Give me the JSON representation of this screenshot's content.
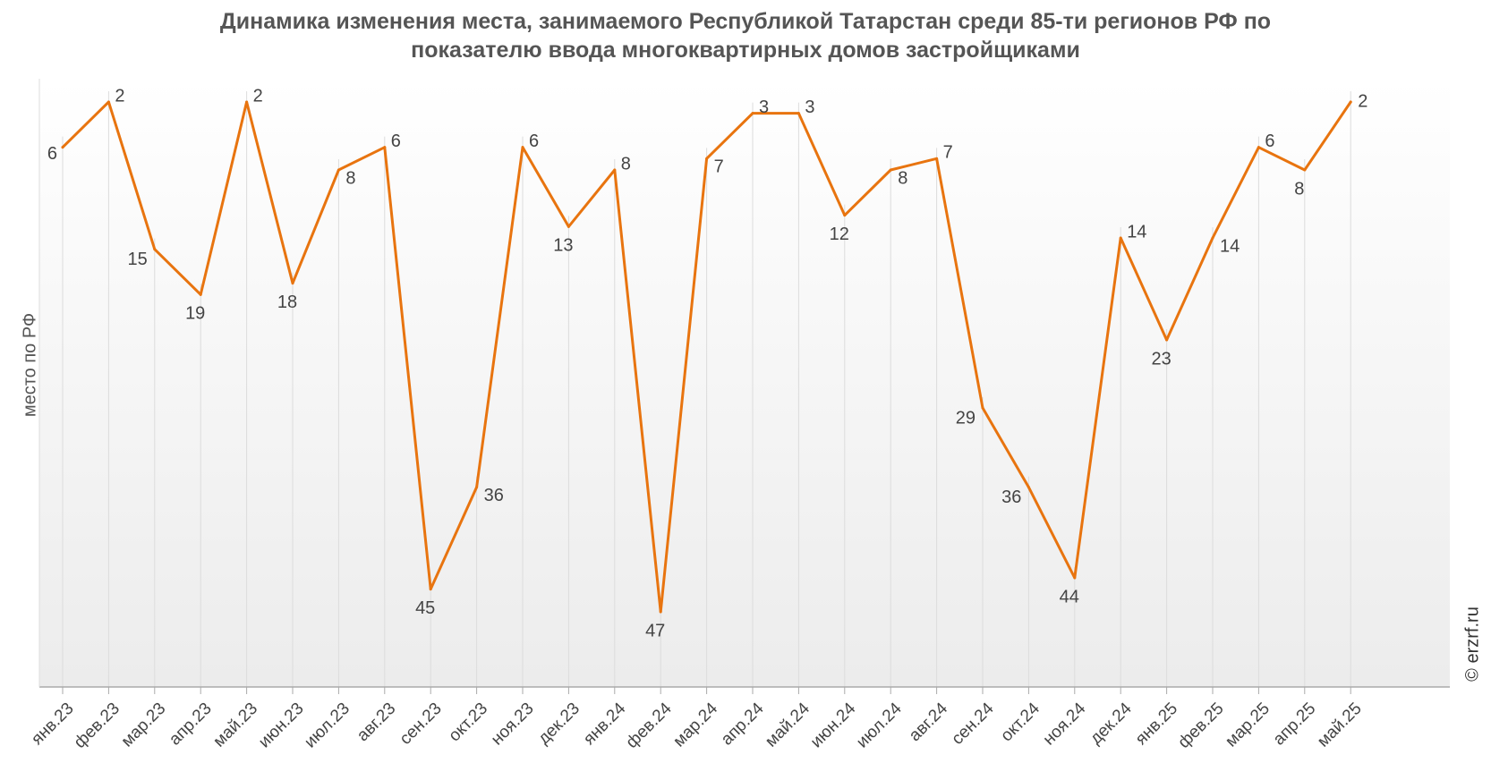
{
  "chart_data": {
    "type": "line",
    "title": "Динамика изменения места, занимаемого Республикой Татарстан среди 85-ти регионов РФ по",
    "title_line2": "показателю ввода многоквартирных домов застройщиками",
    "ylabel": "место по РФ",
    "xlabel": "",
    "y_inverted": true,
    "ylim": [
      1,
      50
    ],
    "grid": "vertical",
    "categories": [
      "янв.23",
      "фев.23",
      "мар.23",
      "апр.23",
      "май.23",
      "июн.23",
      "июл.23",
      "авг.23",
      "сен.23",
      "окт.23",
      "ноя.23",
      "дек.23",
      "янв.24",
      "фев.24",
      "мар.24",
      "апр.24",
      "май.24",
      "июн.24",
      "июл.24",
      "авг.24",
      "сен.24",
      "окт.24",
      "ноя.24",
      "дек.24",
      "янв.25",
      "фев.25",
      "мар.25",
      "апр.25",
      "май.25"
    ],
    "series": [
      {
        "name": "",
        "color": "#E8740F",
        "values": [
          6,
          2,
          15,
          19,
          2,
          18,
          8,
          6,
          45,
          36,
          6,
          13,
          8,
          47,
          7,
          3,
          3,
          12,
          8,
          7,
          29,
          36,
          44,
          14,
          23,
          14,
          6,
          8,
          2
        ]
      }
    ],
    "credit": "© erzrf.ru"
  }
}
